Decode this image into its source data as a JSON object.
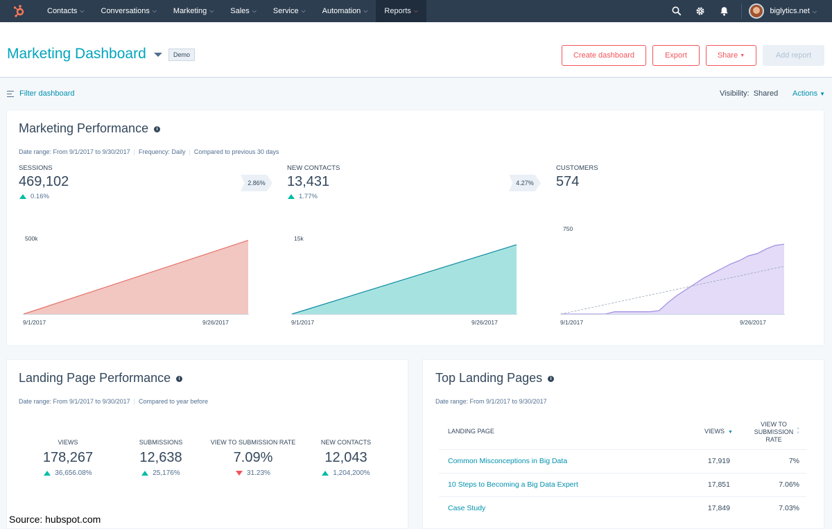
{
  "nav": {
    "items": [
      "Contacts",
      "Conversations",
      "Marketing",
      "Sales",
      "Service",
      "Automation",
      "Reports"
    ],
    "active": "Reports",
    "account": "biglytics.net",
    "icons": [
      "search-icon",
      "gear-icon",
      "bell-icon"
    ],
    "colors": {
      "bg": "#2d3e50",
      "logo": "#ff7a59"
    }
  },
  "header": {
    "title": "Marketing Dashboard",
    "tag": "Demo",
    "buttons": {
      "create": "Create dashboard",
      "export": "Export",
      "share": "Share",
      "add_report": "Add report"
    }
  },
  "filterbar": {
    "filter_label": "Filter dashboard",
    "visibility_label": "Visibility:",
    "visibility_value": "Shared",
    "actions": "Actions"
  },
  "marketing_performance": {
    "title": "Marketing Performance",
    "date_range": "Date range: From 9/1/2017 to 9/30/2017",
    "frequency": "Frequency: Daily",
    "compared": "Compared to previous 30 days",
    "kpis": [
      {
        "label": "SESSIONS",
        "value": "469,102",
        "change": "0.16%"
      },
      {
        "label": "NEW CONTACTS",
        "value": "13,431",
        "change": "1.77%"
      },
      {
        "label": "CUSTOMERS",
        "value": "574"
      }
    ],
    "rates": [
      "2.86%",
      "4.27%"
    ]
  },
  "chart_data": [
    {
      "type": "area",
      "series": [
        {
          "x": [
            "9/1/2017",
            "9/26/2017"
          ],
          "values": [
            0,
            475000
          ]
        }
      ],
      "tick_labels": {
        "y": [
          "500k"
        ],
        "x": [
          "9/1/2017",
          "9/26/2017"
        ]
      },
      "ylim": [
        0,
        500000
      ],
      "color": "#e8a29c"
    },
    {
      "type": "area",
      "series": [
        {
          "x": [
            "9/1/2017",
            "9/26/2017"
          ],
          "values": [
            0,
            13400
          ]
        }
      ],
      "tick_labels": {
        "y": [
          "15k"
        ],
        "x": [
          "9/1/2017",
          "9/26/2017"
        ]
      },
      "ylim": [
        0,
        15000
      ],
      "color": "#00a4bd"
    },
    {
      "type": "area",
      "series": [
        {
          "x": [
            1,
            2,
            3,
            4,
            5,
            6,
            7,
            8,
            9,
            10,
            11,
            12,
            13,
            14,
            15,
            16,
            17,
            18,
            19,
            20,
            21,
            22,
            23,
            24,
            25,
            26
          ],
          "values": [
            0,
            0,
            0,
            0,
            0,
            0,
            20,
            20,
            20,
            20,
            20,
            30,
            100,
            160,
            210,
            260,
            310,
            350,
            390,
            430,
            460,
            500,
            520,
            560,
            590,
            600
          ]
        },
        {
          "x": [
            1,
            26
          ],
          "values": [
            0,
            410
          ]
        }
      ],
      "tick_labels": {
        "y": [
          "750"
        ],
        "x": [
          "9/1/2017",
          "9/26/2017"
        ]
      },
      "ylim": [
        0,
        750
      ],
      "color": "#b8a4e8"
    }
  ],
  "landing_performance": {
    "title": "Landing Page Performance",
    "date_range": "Date range: From 9/1/2017 to 9/30/2017",
    "compared": "Compared to year before",
    "kpis": [
      {
        "label": "VIEWS",
        "value": "178,267",
        "change": "36,656.08%",
        "direction": "up"
      },
      {
        "label": "SUBMISSIONS",
        "value": "12,638",
        "change": "25,176%",
        "direction": "up"
      },
      {
        "label": "VIEW TO SUBMISSION RATE",
        "value": "7.09%",
        "change": "31.23%",
        "direction": "down"
      },
      {
        "label": "NEW CONTACTS",
        "value": "12,043",
        "change": "1,204,200%",
        "direction": "up"
      }
    ]
  },
  "top_landing": {
    "title": "Top Landing Pages",
    "date_range": "Date range: From 9/1/2017 to 9/30/2017",
    "columns": [
      "LANDING PAGE",
      "VIEWS",
      "VIEW TO",
      "SUBMISSION",
      "RATE"
    ],
    "rows": [
      {
        "page": "Common Misconceptions in Big Data",
        "views": "17,919",
        "rate": "7%"
      },
      {
        "page": "10 Steps to Becoming a Big Data Expert",
        "views": "17,851",
        "rate": "7.06%"
      },
      {
        "page": "Case Study",
        "views": "17,849",
        "rate": "7.03%"
      }
    ]
  },
  "source": "Source:  hubspot.com"
}
